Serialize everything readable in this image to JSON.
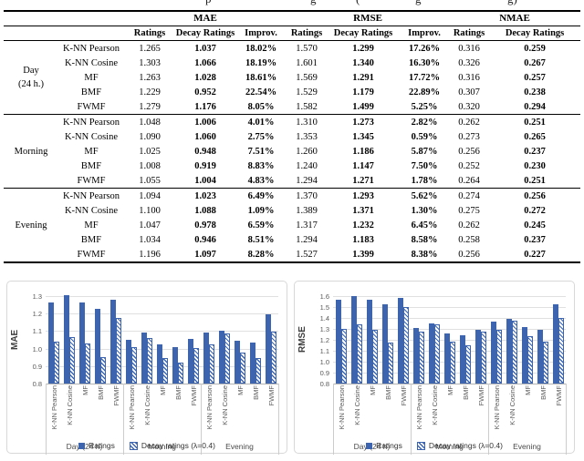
{
  "caption_fragments": [
    {
      "x": 225,
      "glyph": "p"
    },
    {
      "x": 340,
      "glyph": "g"
    },
    {
      "x": 390,
      "glyph": "("
    },
    {
      "x": 455,
      "glyph": "g"
    },
    {
      "x": 556,
      "glyph": "g)"
    }
  ],
  "table": {
    "col_groups": [
      {
        "label": "MAE",
        "span": 3
      },
      {
        "label": "RMSE",
        "span": 3
      },
      {
        "label": "NMAE",
        "span": 2
      }
    ],
    "sub_headers": [
      "Ratings",
      "Decay Ratings",
      "Improv.",
      "Ratings",
      "Decay Ratings",
      "Improv.",
      "Ratings",
      "Decay Ratings"
    ],
    "bold_value_columns": [
      1,
      2,
      4,
      5,
      7
    ],
    "groups": [
      {
        "label_lines": [
          "Day",
          "(24 h.)"
        ],
        "rows": [
          {
            "method": "K-NN Pearson",
            "values": [
              "1.265",
              "1.037",
              "18.02%",
              "1.570",
              "1.299",
              "17.26%",
              "0.316",
              "0.259"
            ]
          },
          {
            "method": "K-NN Cosine",
            "values": [
              "1.303",
              "1.066",
              "18.19%",
              "1.601",
              "1.340",
              "16.30%",
              "0.326",
              "0.267"
            ]
          },
          {
            "method": "MF",
            "values": [
              "1.263",
              "1.028",
              "18.61%",
              "1.569",
              "1.291",
              "17.72%",
              "0.316",
              "0.257"
            ]
          },
          {
            "method": "BMF",
            "values": [
              "1.229",
              "0.952",
              "22.54%",
              "1.529",
              "1.179",
              "22.89%",
              "0.307",
              "0.238"
            ]
          },
          {
            "method": "FWMF",
            "values": [
              "1.279",
              "1.176",
              "8.05%",
              "1.582",
              "1.499",
              "5.25%",
              "0.320",
              "0.294"
            ]
          }
        ]
      },
      {
        "label_lines": [
          "Morning"
        ],
        "rows": [
          {
            "method": "K-NN Pearson",
            "values": [
              "1.048",
              "1.006",
              "4.01%",
              "1.310",
              "1.273",
              "2.82%",
              "0.262",
              "0.251"
            ]
          },
          {
            "method": "K-NN Cosine",
            "values": [
              "1.090",
              "1.060",
              "2.75%",
              "1.353",
              "1.345",
              "0.59%",
              "0.273",
              "0.265"
            ]
          },
          {
            "method": "MF",
            "values": [
              "1.025",
              "0.948",
              "7.51%",
              "1.260",
              "1.186",
              "5.87%",
              "0.256",
              "0.237"
            ]
          },
          {
            "method": "BMF",
            "values": [
              "1.008",
              "0.919",
              "8.83%",
              "1.240",
              "1.147",
              "7.50%",
              "0.252",
              "0.230"
            ]
          },
          {
            "method": "FWMF",
            "values": [
              "1.055",
              "1.004",
              "4.83%",
              "1.294",
              "1.271",
              "1.78%",
              "0.264",
              "0.251"
            ]
          }
        ]
      },
      {
        "label_lines": [
          "Evening"
        ],
        "rows": [
          {
            "method": "K-NN Pearson",
            "values": [
              "1.094",
              "1.023",
              "6.49%",
              "1.370",
              "1.293",
              "5.62%",
              "0.274",
              "0.256"
            ]
          },
          {
            "method": "K-NN Cosine",
            "values": [
              "1.100",
              "1.088",
              "1.09%",
              "1.389",
              "1.371",
              "1.30%",
              "0.275",
              "0.272"
            ]
          },
          {
            "method": "MF",
            "values": [
              "1.047",
              "0.978",
              "6.59%",
              "1.317",
              "1.232",
              "6.45%",
              "0.262",
              "0.245"
            ]
          },
          {
            "method": "BMF",
            "values": [
              "1.034",
              "0.946",
              "8.51%",
              "1.294",
              "1.183",
              "8.58%",
              "0.258",
              "0.237"
            ]
          },
          {
            "method": "FWMF",
            "values": [
              "1.196",
              "1.097",
              "8.28%",
              "1.527",
              "1.399",
              "8.38%",
              "0.256",
              "0.227"
            ]
          }
        ]
      }
    ]
  },
  "colors": {
    "bar_blue": "#3d64ae",
    "gridline": "#e0e0e0",
    "axis": "#b3b3b3"
  },
  "chart_data": [
    {
      "type": "bar",
      "title": "",
      "ylabel": "MAE",
      "xlabel": "",
      "ylim": [
        0.8,
        1.3
      ],
      "yticks": [
        1.3,
        1.2,
        1.1,
        1.0,
        0.9,
        0.8
      ],
      "grid": true,
      "legend_position": "bottom",
      "group_labels": [
        "Day (24 h)",
        "Morning",
        "Evening"
      ],
      "categories_per_group": [
        "K-NN Pearson",
        "K-NN Cosine",
        "MF",
        "BMF",
        "FWMF"
      ],
      "series": [
        {
          "name": "Ratings",
          "style": "solid",
          "values": [
            1.265,
            1.303,
            1.263,
            1.229,
            1.279,
            1.048,
            1.09,
            1.025,
            1.008,
            1.055,
            1.094,
            1.1,
            1.047,
            1.034,
            1.196
          ]
        },
        {
          "name": "Decay ratings (λ=0.4)",
          "style": "hatched",
          "values": [
            1.037,
            1.066,
            1.028,
            0.952,
            1.176,
            1.006,
            1.06,
            0.948,
            0.919,
            1.004,
            1.023,
            1.088,
            0.978,
            0.946,
            1.097
          ]
        }
      ]
    },
    {
      "type": "bar",
      "title": "",
      "ylabel": "RMSE",
      "xlabel": "",
      "ylim": [
        0.8,
        1.6
      ],
      "yticks": [
        1.6,
        1.5,
        1.4,
        1.3,
        1.2,
        1.1,
        1.0,
        0.9,
        0.8
      ],
      "grid": true,
      "legend_position": "bottom",
      "group_labels": [
        "Day (24 h)",
        "Morning",
        "Evening"
      ],
      "categories_per_group": [
        "K-NN Pearson",
        "K-NN Cosine",
        "MF",
        "BMF",
        "FWMF"
      ],
      "series": [
        {
          "name": "Ratings",
          "style": "solid",
          "values": [
            1.57,
            1.601,
            1.569,
            1.529,
            1.582,
            1.31,
            1.353,
            1.26,
            1.24,
            1.294,
            1.37,
            1.389,
            1.317,
            1.294,
            1.527
          ]
        },
        {
          "name": "Decay ratings (λ=0.4)",
          "style": "hatched",
          "values": [
            1.299,
            1.34,
            1.291,
            1.179,
            1.499,
            1.273,
            1.345,
            1.186,
            1.147,
            1.271,
            1.293,
            1.371,
            1.232,
            1.183,
            1.399
          ]
        }
      ]
    }
  ]
}
